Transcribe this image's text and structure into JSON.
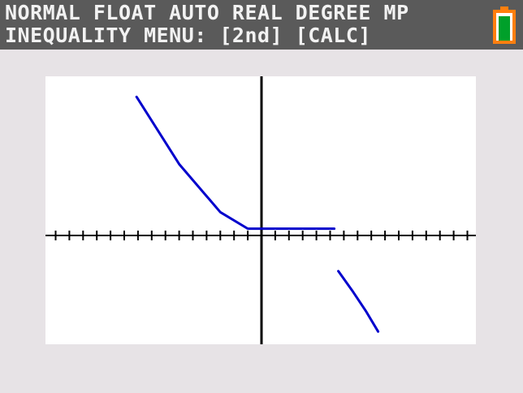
{
  "status_bar": {
    "line1": "NORMAL FLOAT AUTO REAL DEGREE MP",
    "line2": "INEQUALITY MENU: [2nd] [CALC]"
  },
  "battery": {
    "icon": "battery-icon",
    "level": "high",
    "colors": {
      "outline": "#ff7f0e",
      "fill": "#00a02a"
    }
  },
  "graph": {
    "colors": {
      "curve": "#0000cc",
      "axes": "#000000",
      "background": "#ffffff",
      "surround": "#e7e3e6",
      "status_bar": "#5a5a5a"
    },
    "x_ticks": 31,
    "curves": [
      {
        "name": "",
        "points": [
          [
            -9.1,
            10.1
          ],
          [
            -6.0,
            5.2
          ],
          [
            -3.0,
            1.7
          ],
          [
            -1.0,
            0.5
          ],
          [
            0.0,
            0.5
          ],
          [
            5.3,
            0.5
          ]
        ]
      },
      {
        "name": "",
        "points": [
          [
            5.6,
            -2.6
          ],
          [
            6.6,
            -4.0
          ],
          [
            7.6,
            -5.5
          ],
          [
            8.5,
            -7.0
          ]
        ]
      }
    ]
  }
}
